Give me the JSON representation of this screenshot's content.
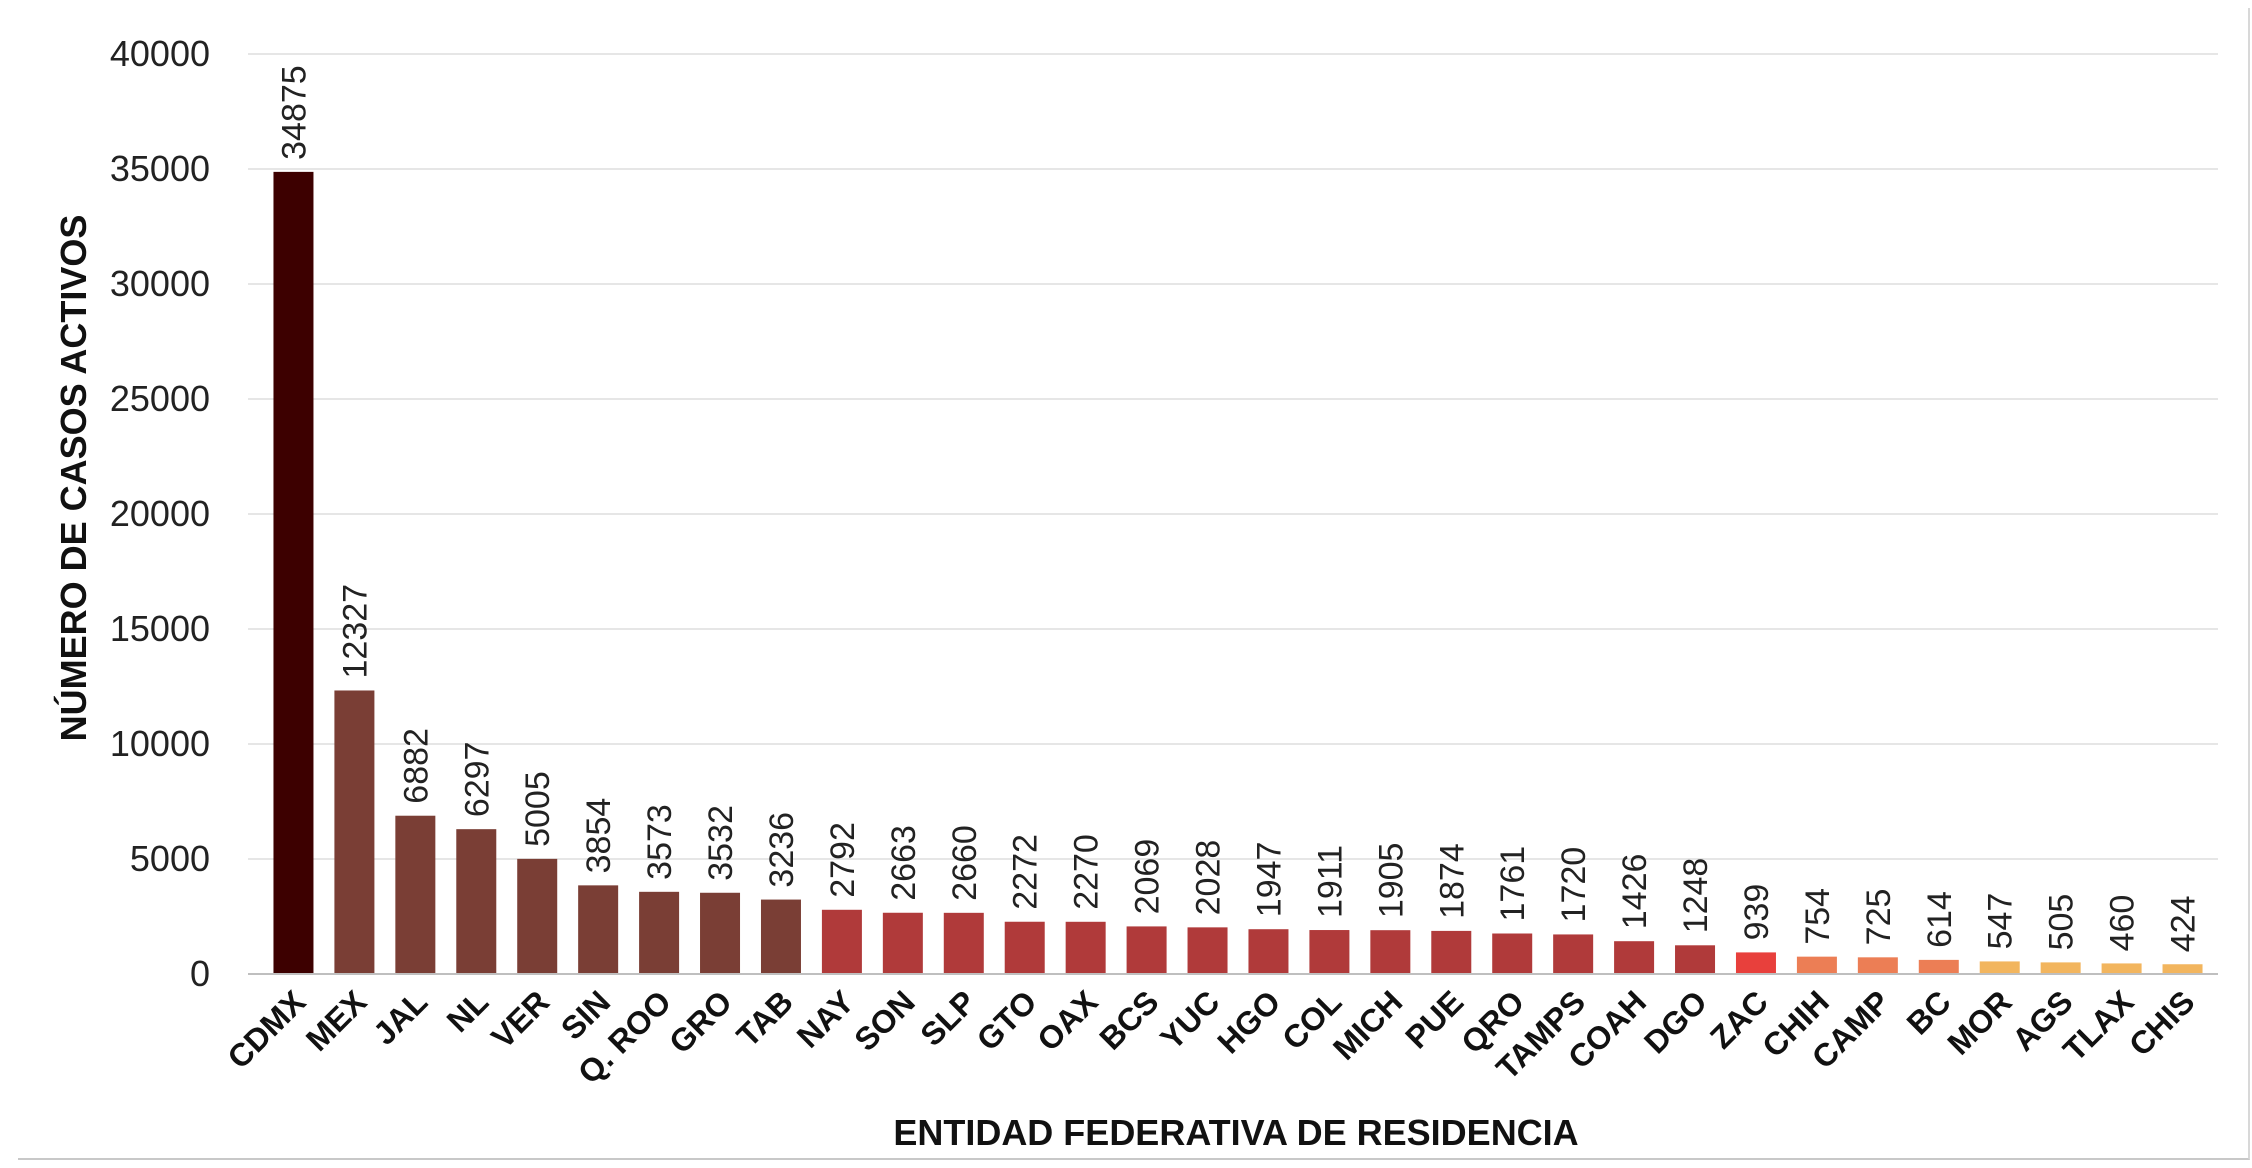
{
  "chart_data": {
    "type": "bar",
    "xlabel": "ENTIDAD FEDERATIVA DE RESIDENCIA",
    "ylabel": "NÚMERO DE CASOS ACTIVOS",
    "ylim": [
      0,
      40000
    ],
    "yticks": [
      "0",
      "5000",
      "10000",
      "15000",
      "20000",
      "25000",
      "30000",
      "35000",
      "40000"
    ],
    "grid": true,
    "categories": [
      "CDMX",
      "MEX",
      "JAL",
      "NL",
      "VER",
      "SIN",
      "Q. ROO",
      "GRO",
      "TAB",
      "NAY",
      "SON",
      "SLP",
      "GTO",
      "OAX",
      "BCS",
      "YUC",
      "HGO",
      "COL",
      "MICH",
      "PUE",
      "QRO",
      "TAMPS",
      "COAH",
      "DGO",
      "ZAC",
      "CHIH",
      "CAMP",
      "BC",
      "MOR",
      "AGS",
      "TLAX",
      "CHIS"
    ],
    "values": [
      34875,
      12327,
      6882,
      6297,
      5005,
      3854,
      3573,
      3532,
      3236,
      2792,
      2663,
      2660,
      2272,
      2270,
      2069,
      2028,
      1947,
      1911,
      1905,
      1874,
      1761,
      1720,
      1426,
      1248,
      939,
      754,
      725,
      614,
      547,
      505,
      460,
      424
    ],
    "colors": [
      "#3d0000",
      "#7a3e35",
      "#7a3e35",
      "#7a3e35",
      "#7a3e35",
      "#7a3e35",
      "#7a3e35",
      "#7a3e35",
      "#7a3e35",
      "#b03a3a",
      "#b03a3a",
      "#b03a3a",
      "#b03a3a",
      "#b03a3a",
      "#b03a3a",
      "#b03a3a",
      "#b03a3a",
      "#b03a3a",
      "#b03a3a",
      "#b03a3a",
      "#b03a3a",
      "#b03a3a",
      "#b03a3a",
      "#b03a3a",
      "#e8403c",
      "#ec7e55",
      "#ec7e55",
      "#ec7e55",
      "#f2b55e",
      "#f2b55e",
      "#f2b55e",
      "#f2b55e"
    ]
  }
}
